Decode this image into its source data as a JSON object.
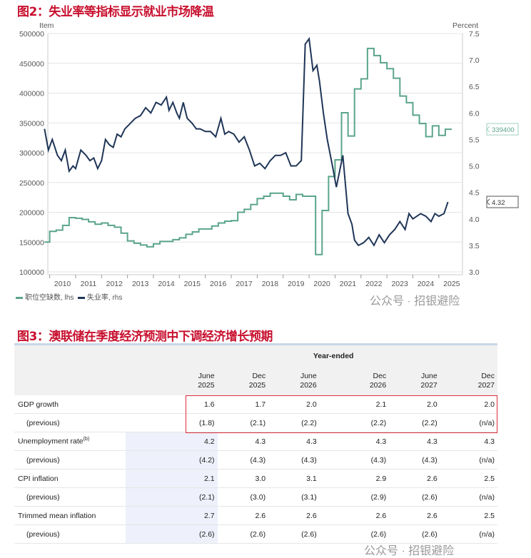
{
  "figure2": {
    "title": "图2：失业率等指标显示就业市场降温",
    "legend": [
      {
        "label": "职位空缺数, lhs",
        "color": "#5aa58a"
      },
      {
        "label": "失业率, rhs",
        "color": "#1f3557"
      }
    ],
    "watermark": "公众号 · 招银避险"
  },
  "chart_data": {
    "type": "line",
    "left_axis": {
      "label": "Item",
      "range": [
        100000,
        500000
      ],
      "ticks": [
        "100000",
        "150000",
        "200000",
        "250000",
        "300000",
        "350000",
        "400000",
        "450000",
        "500000"
      ]
    },
    "right_axis": {
      "label": "Percent",
      "range": [
        3.0,
        7.5
      ],
      "ticks": [
        "3.0",
        "3.5",
        "4.0",
        "4.5",
        "5.0",
        "5.5",
        "6.0",
        "6.5",
        "7.0",
        "7.5"
      ]
    },
    "x_ticks": [
      "2010",
      "2011",
      "2012",
      "2013",
      "2014",
      "2015",
      "2016",
      "2017",
      "2018",
      "2019",
      "2020",
      "2021",
      "2022",
      "2023",
      "2024",
      "2025"
    ],
    "grid": true,
    "series": [
      {
        "name": "职位空缺数, lhs",
        "axis": "left",
        "color": "#5aa58a",
        "step": true,
        "end_label": "339400",
        "x": [
          2009.8,
          2010.0,
          2010.25,
          2010.5,
          2010.75,
          2011.0,
          2011.25,
          2011.5,
          2011.75,
          2012.0,
          2012.25,
          2012.5,
          2012.75,
          2013.0,
          2013.25,
          2013.5,
          2013.75,
          2014.0,
          2014.25,
          2014.5,
          2014.75,
          2015.0,
          2015.25,
          2015.5,
          2015.75,
          2016.0,
          2016.25,
          2016.5,
          2016.75,
          2017.0,
          2017.25,
          2017.5,
          2017.75,
          2018.0,
          2018.25,
          2018.5,
          2018.75,
          2019.0,
          2019.25,
          2019.5,
          2019.75,
          2020.25,
          2020.5,
          2020.75,
          2021.0,
          2021.25,
          2021.5,
          2021.75,
          2022.0,
          2022.25,
          2022.5,
          2022.75,
          2023.0,
          2023.25,
          2023.5,
          2023.75,
          2024.0,
          2024.25,
          2024.5,
          2024.75,
          2025.0,
          2025.25,
          2025.5
        ],
        "y": [
          150000,
          168000,
          170000,
          178000,
          191000,
          190000,
          188000,
          184000,
          180000,
          182000,
          178000,
          175000,
          165000,
          152000,
          148000,
          145000,
          142000,
          147000,
          151000,
          151000,
          154000,
          157000,
          163000,
          167000,
          172000,
          172000,
          177000,
          182000,
          185000,
          186000,
          200000,
          205000,
          213000,
          223000,
          227000,
          232000,
          232000,
          227000,
          221000,
          230000,
          227000,
          129000,
          203000,
          260000,
          288000,
          367000,
          328000,
          407000,
          424000,
          475000,
          463000,
          451000,
          441000,
          425000,
          395000,
          384000,
          363000,
          349000,
          327000,
          345000,
          329000,
          339400,
          339400
        ]
      },
      {
        "name": "失业率, rhs",
        "axis": "right",
        "color": "#1f3557",
        "end_label": "4.32",
        "x": [
          2009.8,
          2009.95,
          2010.1,
          2010.3,
          2010.45,
          2010.6,
          2010.75,
          2010.9,
          2011.0,
          2011.2,
          2011.4,
          2011.55,
          2011.7,
          2011.85,
          2012.0,
          2012.15,
          2012.3,
          2012.45,
          2012.6,
          2012.75,
          2012.9,
          2013.1,
          2013.3,
          2013.5,
          2013.7,
          2013.9,
          2014.1,
          2014.3,
          2014.5,
          2014.6,
          2014.75,
          2014.9,
          2015.0,
          2015.15,
          2015.3,
          2015.5,
          2015.65,
          2015.8,
          2016.0,
          2016.2,
          2016.4,
          2016.6,
          2016.75,
          2016.9,
          2017.1,
          2017.3,
          2017.5,
          2017.7,
          2017.9,
          2018.1,
          2018.3,
          2018.5,
          2018.7,
          2018.9,
          2019.1,
          2019.3,
          2019.5,
          2019.7,
          2019.85,
          2020.0,
          2020.15,
          2020.3,
          2020.4,
          2020.55,
          2020.7,
          2020.9,
          2021.05,
          2021.3,
          2021.5,
          2021.65,
          2021.75,
          2021.9,
          2022.1,
          2022.3,
          2022.5,
          2022.7,
          2022.9,
          2023.1,
          2023.3,
          2023.5,
          2023.7,
          2023.85,
          2024.0,
          2024.15,
          2024.3,
          2024.5,
          2024.7,
          2024.85,
          2025.0,
          2025.2,
          2025.35
        ],
        "y": [
          5.7,
          5.3,
          5.5,
          5.2,
          5.1,
          5.3,
          4.9,
          5.0,
          4.95,
          5.3,
          5.2,
          5.1,
          5.15,
          4.95,
          5.1,
          5.5,
          5.4,
          5.35,
          5.6,
          5.55,
          5.7,
          5.8,
          5.9,
          5.95,
          6.1,
          6.0,
          6.2,
          6.15,
          6.3,
          6.05,
          6.2,
          6.0,
          5.9,
          6.2,
          5.9,
          5.8,
          5.7,
          5.7,
          5.65,
          5.65,
          5.55,
          5.9,
          5.6,
          5.65,
          5.6,
          5.45,
          5.55,
          5.3,
          5.0,
          5.05,
          4.95,
          5.1,
          5.2,
          5.2,
          5.25,
          5.0,
          5.0,
          5.1,
          7.3,
          7.4,
          6.8,
          6.9,
          6.6,
          6.0,
          5.5,
          5.0,
          4.6,
          5.2,
          4.1,
          3.9,
          3.6,
          3.5,
          3.55,
          3.65,
          3.5,
          3.7,
          3.55,
          3.7,
          3.8,
          3.95,
          3.8,
          4.1,
          4.0,
          4.05,
          4.1,
          4.05,
          3.95,
          4.1,
          4.05,
          4.1,
          4.32
        ]
      }
    ]
  },
  "figure3": {
    "title": "图3：澳联储在季度经济预测中下调经济增长预期",
    "group_header": "Year-ended",
    "columns": [
      [
        "June",
        "2025"
      ],
      [
        "Dec",
        "2025"
      ],
      [
        "June",
        "2026"
      ],
      [
        "Dec",
        "2026"
      ],
      [
        "June",
        "2027"
      ],
      [
        "Dec",
        "2027"
      ]
    ],
    "rows": [
      {
        "label": "GDP growth",
        "values": [
          "1.6",
          "1.7",
          "2.0",
          "2.1",
          "2.0",
          "2.0"
        ]
      },
      {
        "label": "(previous)",
        "values": [
          "(1.8)",
          "(2.1)",
          "(2.2)",
          "(2.2)",
          "(2.2)",
          "(n/a)"
        ]
      },
      {
        "label": "Unemployment rate",
        "sup": "(b)",
        "values": [
          "4.2",
          "4.3",
          "4.3",
          "4.3",
          "4.3",
          "4.3"
        ]
      },
      {
        "label": "(previous)",
        "values": [
          "(4.2)",
          "(4.3)",
          "(4.3)",
          "(4.3)",
          "(4.3)",
          "(n/a)"
        ]
      },
      {
        "label": "CPI inflation",
        "values": [
          "2.1",
          "3.0",
          "3.1",
          "2.9",
          "2.6",
          "2.5"
        ]
      },
      {
        "label": "(previous)",
        "values": [
          "(2.1)",
          "(3.0)",
          "(3.1)",
          "(2.9)",
          "(2.6)",
          "(n/a)"
        ]
      },
      {
        "label": "Trimmed mean inflation",
        "values": [
          "2.7",
          "2.6",
          "2.6",
          "2.6",
          "2.6",
          "2.5"
        ]
      },
      {
        "label": "(previous)",
        "values": [
          "(2.6)",
          "(2.6)",
          "(2.6)",
          "(2.6)",
          "(2.6)",
          "(n/a)"
        ]
      }
    ],
    "watermark": "公众号 · 招银避险"
  }
}
